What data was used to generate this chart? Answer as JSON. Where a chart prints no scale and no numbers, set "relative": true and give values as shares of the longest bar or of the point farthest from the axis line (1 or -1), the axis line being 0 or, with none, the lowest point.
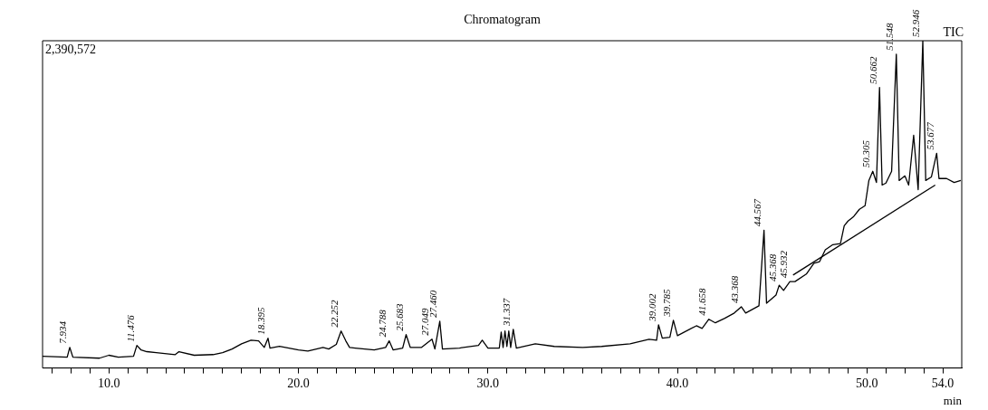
{
  "chart_data": {
    "type": "line",
    "title": "Chromatogram",
    "xlabel": "min",
    "relative": true,
    "legend": false,
    "grid": false,
    "marker": "none",
    "line_style": "solid",
    "xlim": [
      6.5,
      55
    ],
    "xticks": [
      {
        "value": 7,
        "label": null
      },
      {
        "value": 8,
        "label": null
      },
      {
        "value": 9,
        "label": null
      },
      {
        "value": 10,
        "label": "10.0"
      },
      {
        "value": 11,
        "label": null
      },
      {
        "value": 12,
        "label": null
      },
      {
        "value": 13,
        "label": null
      },
      {
        "value": 14,
        "label": null
      },
      {
        "value": 15,
        "label": null
      },
      {
        "value": 16,
        "label": null
      },
      {
        "value": 17,
        "label": null
      },
      {
        "value": 18,
        "label": null
      },
      {
        "value": 19,
        "label": null
      },
      {
        "value": 20,
        "label": "20.0"
      },
      {
        "value": 21,
        "label": null
      },
      {
        "value": 22,
        "label": null
      },
      {
        "value": 23,
        "label": null
      },
      {
        "value": 24,
        "label": null
      },
      {
        "value": 25,
        "label": null
      },
      {
        "value": 26,
        "label": null
      },
      {
        "value": 27,
        "label": null
      },
      {
        "value": 28,
        "label": null
      },
      {
        "value": 29,
        "label": null
      },
      {
        "value": 30,
        "label": "30.0"
      },
      {
        "value": 31,
        "label": null
      },
      {
        "value": 32,
        "label": null
      },
      {
        "value": 33,
        "label": null
      },
      {
        "value": 34,
        "label": null
      },
      {
        "value": 35,
        "label": null
      },
      {
        "value": 36,
        "label": null
      },
      {
        "value": 37,
        "label": null
      },
      {
        "value": 38,
        "label": null
      },
      {
        "value": 39,
        "label": null
      },
      {
        "value": 40,
        "label": "40.0"
      },
      {
        "value": 41,
        "label": null
      },
      {
        "value": 42,
        "label": null
      },
      {
        "value": 43,
        "label": null
      },
      {
        "value": 44,
        "label": null
      },
      {
        "value": 45,
        "label": null
      },
      {
        "value": 46,
        "label": null
      },
      {
        "value": 47,
        "label": null
      },
      {
        "value": 48,
        "label": null
      },
      {
        "value": 49,
        "label": null
      },
      {
        "value": 50,
        "label": "50.0"
      },
      {
        "value": 51,
        "label": null
      },
      {
        "value": 52,
        "label": null
      },
      {
        "value": 53,
        "label": null
      },
      {
        "value": 54,
        "label": "54.0"
      }
    ],
    "series": [
      {
        "color": "#000000",
        "x": [
          6.5,
          7.8,
          7.934,
          8.1,
          9.5,
          10.0,
          10.5,
          11.3,
          11.476,
          11.7,
          12.0,
          12.5,
          13.5,
          13.7,
          14.5,
          15.5,
          16.0,
          16.5,
          17.0,
          17.5,
          17.9,
          18.2,
          18.395,
          18.5,
          19.0,
          20.0,
          20.5,
          21.3,
          21.6,
          22.0,
          22.252,
          22.5,
          22.7,
          23.0,
          24.0,
          24.6,
          24.788,
          25.0,
          25.5,
          25.683,
          25.9,
          26.5,
          27.049,
          27.2,
          27.46,
          27.6,
          28.5,
          29.5,
          29.7,
          30.0,
          30.6,
          30.7,
          30.8,
          30.9,
          31.0,
          31.1,
          31.2,
          31.337,
          31.5,
          32.5,
          33.5,
          35.0,
          36.0,
          37.5,
          38.5,
          38.9,
          39.002,
          39.2,
          39.6,
          39.785,
          40.0,
          41.0,
          41.3,
          41.658,
          42.0,
          42.5,
          43.0,
          43.368,
          43.6,
          44.3,
          44.567,
          44.7,
          45.2,
          45.368,
          45.6,
          45.932,
          46.2,
          46.8,
          47.2,
          47.5,
          47.8,
          48.2,
          48.6,
          48.8,
          49.0,
          49.3,
          49.6,
          49.9,
          50.1,
          50.305,
          50.5,
          50.662,
          50.8,
          51.0,
          51.3,
          51.548,
          51.7,
          52.0,
          52.2,
          52.463,
          52.7,
          52.946,
          53.1,
          53.4,
          53.677,
          53.8,
          54.2,
          54.6,
          54.95
        ],
        "values": [
          0.036,
          0.033,
          0.063,
          0.033,
          0.03,
          0.039,
          0.033,
          0.036,
          0.069,
          0.055,
          0.05,
          0.047,
          0.041,
          0.05,
          0.039,
          0.041,
          0.047,
          0.058,
          0.074,
          0.085,
          0.083,
          0.063,
          0.091,
          0.061,
          0.066,
          0.055,
          0.052,
          0.063,
          0.058,
          0.072,
          0.113,
          0.083,
          0.063,
          0.061,
          0.055,
          0.063,
          0.083,
          0.055,
          0.061,
          0.102,
          0.063,
          0.063,
          0.088,
          0.058,
          0.143,
          0.058,
          0.061,
          0.069,
          0.085,
          0.061,
          0.061,
          0.11,
          0.063,
          0.113,
          0.066,
          0.113,
          0.063,
          0.118,
          0.061,
          0.074,
          0.066,
          0.063,
          0.066,
          0.074,
          0.088,
          0.085,
          0.132,
          0.091,
          0.094,
          0.146,
          0.099,
          0.129,
          0.121,
          0.149,
          0.138,
          0.152,
          0.168,
          0.187,
          0.168,
          0.19,
          0.421,
          0.198,
          0.223,
          0.253,
          0.237,
          0.264,
          0.264,
          0.287,
          0.32,
          0.325,
          0.361,
          0.377,
          0.38,
          0.435,
          0.449,
          0.463,
          0.485,
          0.496,
          0.573,
          0.601,
          0.567,
          0.857,
          0.559,
          0.565,
          0.601,
          0.959,
          0.573,
          0.587,
          0.559,
          0.711,
          0.545,
          1.0,
          0.573,
          0.584,
          0.656,
          0.579,
          0.579,
          0.567,
          0.573
        ]
      },
      {
        "color": "#000000",
        "x": [
          46.1,
          53.6
        ],
        "values": [
          0.284,
          0.559
        ]
      }
    ],
    "annotations": [
      "2,390,572",
      "TIC",
      {
        "text": "7.934",
        "x": 7.934,
        "y": 0.063
      },
      {
        "text": "11.476",
        "x": 11.476,
        "y": 0.069
      },
      {
        "text": "18.395",
        "x": 18.395,
        "y": 0.091
      },
      {
        "text": "22.252",
        "x": 22.252,
        "y": 0.113
      },
      {
        "text": "24.788",
        "x": 24.788,
        "y": 0.083
      },
      {
        "text": "25.683",
        "x": 25.683,
        "y": 0.102
      },
      {
        "text": "27.049",
        "x": 27.049,
        "y": 0.088
      },
      {
        "text": "27.460",
        "x": 27.46,
        "y": 0.143
      },
      {
        "text": "31.337",
        "x": 31.337,
        "y": 0.118
      },
      {
        "text": "39.002",
        "x": 39.002,
        "y": 0.132
      },
      {
        "text": "39.785",
        "x": 39.785,
        "y": 0.146
      },
      {
        "text": "41.658",
        "x": 41.658,
        "y": 0.149
      },
      {
        "text": "43.368",
        "x": 43.368,
        "y": 0.187
      },
      {
        "text": "44.567",
        "x": 44.567,
        "y": 0.421
      },
      {
        "text": "45.368",
        "x": 45.368,
        "y": 0.253
      },
      {
        "text": "45.932",
        "x": 45.932,
        "y": 0.264
      },
      {
        "text": "50.305",
        "x": 50.305,
        "y": 0.601
      },
      {
        "text": "50.662",
        "x": 50.662,
        "y": 0.857
      },
      {
        "text": "51.548",
        "x": 51.548,
        "y": 0.959
      },
      {
        "text": "52.946",
        "x": 52.946,
        "y": 1.0
      },
      {
        "text": "53.677",
        "x": 53.677,
        "y": 0.656
      }
    ]
  }
}
